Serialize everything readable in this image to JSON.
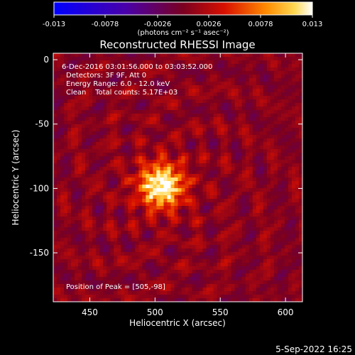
{
  "chart_data": {
    "type": "heatmap",
    "title": "Reconstructed RHESSI Image",
    "xlabel": "Heliocentric X (arcsec)",
    "ylabel": "Heliocentric Y (arcsec)",
    "xlim": [
      422,
      613
    ],
    "ylim": [
      -188,
      5
    ],
    "xticks": [
      450,
      500,
      550,
      600
    ],
    "yticks": [
      0,
      -50,
      -100,
      -150
    ],
    "colorbar": {
      "min": -0.013,
      "max": 0.013,
      "ticks": [
        "-0.013",
        "-0.0078",
        "-0.0026",
        "0.0026",
        "0.0078",
        "0.013"
      ],
      "unit_label": "(photons cm⁻² s⁻¹ asec⁻²)"
    },
    "annotations": [
      "6-Dec-2016 03:01:56.000 to 03:03:52.000",
      "Detectors: 3F 9F, Att 0",
      "Energy Range: 6.0 - 12.0 keV",
      "Clean    Total counts: 5.17E+03"
    ],
    "peak": {
      "x": 505,
      "y": -98,
      "label": "Position of Peak = [505,-98]"
    },
    "grid": false
  },
  "footer": {
    "date": "5-Sep-2022 16:25"
  },
  "colors": {
    "background": "#000000",
    "text": "#ffffff"
  }
}
